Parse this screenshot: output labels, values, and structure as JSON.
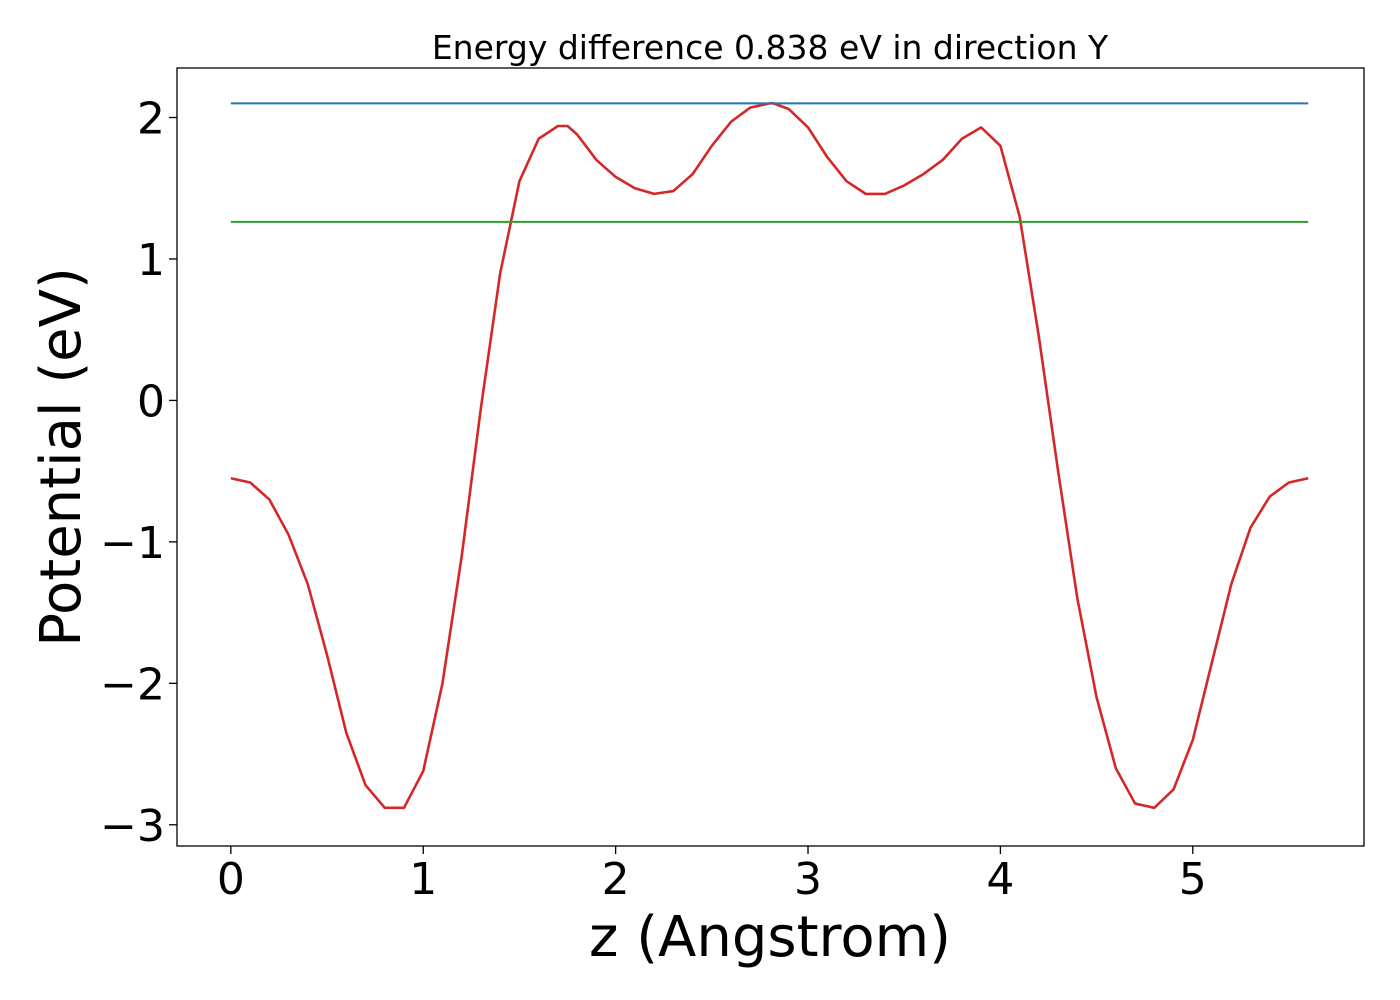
{
  "chart_data": {
    "type": "line",
    "title": "Energy difference 0.838 eV in direction Y",
    "xlabel": "z (Angstrom)",
    "ylabel": "Potential (eV)",
    "xlim": [
      -0.28,
      5.89
    ],
    "ylim": [
      -3.15,
      2.35
    ],
    "xticks": [
      0,
      1,
      2,
      3,
      4,
      5
    ],
    "xtick_labels": [
      "0",
      "1",
      "2",
      "3",
      "4",
      "5"
    ],
    "yticks": [
      -3,
      -2,
      -1,
      0,
      1,
      2
    ],
    "ytick_labels": [
      "−3",
      "−2",
      "−1",
      "0",
      "1",
      "2"
    ],
    "grid": false,
    "legend": "none",
    "series": [
      {
        "color": "#d62728",
        "x": [
          0.0,
          0.1,
          0.2,
          0.3,
          0.4,
          0.5,
          0.6,
          0.7,
          0.8,
          0.9,
          1.0,
          1.1,
          1.2,
          1.3,
          1.4,
          1.5,
          1.6,
          1.7,
          1.75,
          1.8,
          1.9,
          2.0,
          2.1,
          2.2,
          2.3,
          2.4,
          2.5,
          2.6,
          2.7,
          2.8,
          2.82,
          2.9,
          3.0,
          3.1,
          3.2,
          3.3,
          3.4,
          3.5,
          3.6,
          3.7,
          3.8,
          3.9,
          4.0,
          4.1,
          4.2,
          4.3,
          4.4,
          4.5,
          4.6,
          4.7,
          4.8,
          4.9,
          5.0,
          5.1,
          5.2,
          5.3,
          5.4,
          5.5,
          5.6
        ],
        "y": [
          -0.55,
          -0.58,
          -0.7,
          -0.95,
          -1.3,
          -1.8,
          -2.35,
          -2.72,
          -2.88,
          -2.88,
          -2.62,
          -2.0,
          -1.1,
          -0.05,
          0.9,
          1.55,
          1.85,
          1.94,
          1.94,
          1.88,
          1.7,
          1.58,
          1.5,
          1.46,
          1.48,
          1.6,
          1.8,
          1.97,
          2.07,
          2.1,
          2.1,
          2.06,
          1.93,
          1.72,
          1.55,
          1.46,
          1.46,
          1.52,
          1.6,
          1.7,
          1.85,
          1.93,
          1.8,
          1.3,
          0.45,
          -0.5,
          -1.4,
          -2.1,
          -2.6,
          -2.85,
          -2.88,
          -2.75,
          -2.4,
          -1.85,
          -1.3,
          -0.9,
          -0.68,
          -0.58,
          -0.55
        ]
      },
      {
        "color": "#1f77b4",
        "x": [
          0.0,
          5.6
        ],
        "y": [
          2.1,
          2.1
        ]
      },
      {
        "color": "#2ca02c",
        "x": [
          0.0,
          5.6
        ],
        "y": [
          1.262,
          1.262
        ]
      }
    ]
  }
}
